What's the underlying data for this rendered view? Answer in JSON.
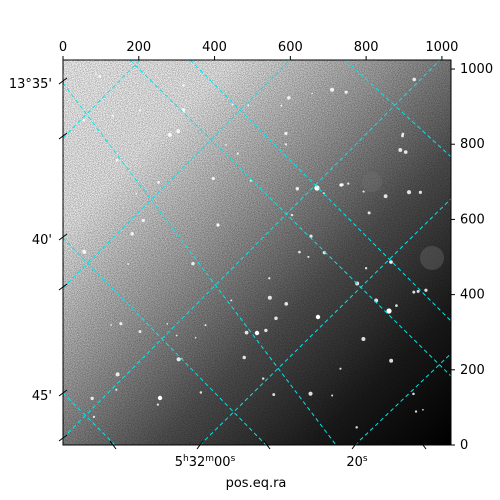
{
  "figure": {
    "top_axis_ticks": [
      "0",
      "200",
      "400",
      "600",
      "800",
      "1000"
    ],
    "right_axis_ticks": [
      "0",
      "200",
      "400",
      "600",
      "800",
      "1000"
    ],
    "left_axis_labels": [
      "13°35'",
      "40'",
      "45'"
    ],
    "bottom_axis_labels": [
      {
        "main": "5",
        "h": "h",
        "m1": "32",
        "m": "m",
        "s1": "00",
        "s": "s"
      },
      {
        "main": "20",
        "s": "s"
      }
    ],
    "xlabel": "pos.eq.ra"
  },
  "colors": {
    "grid": "#00e5ee",
    "axis": "#000000",
    "sky_bright": "#ffffff",
    "sky_dark": "#000000"
  }
}
